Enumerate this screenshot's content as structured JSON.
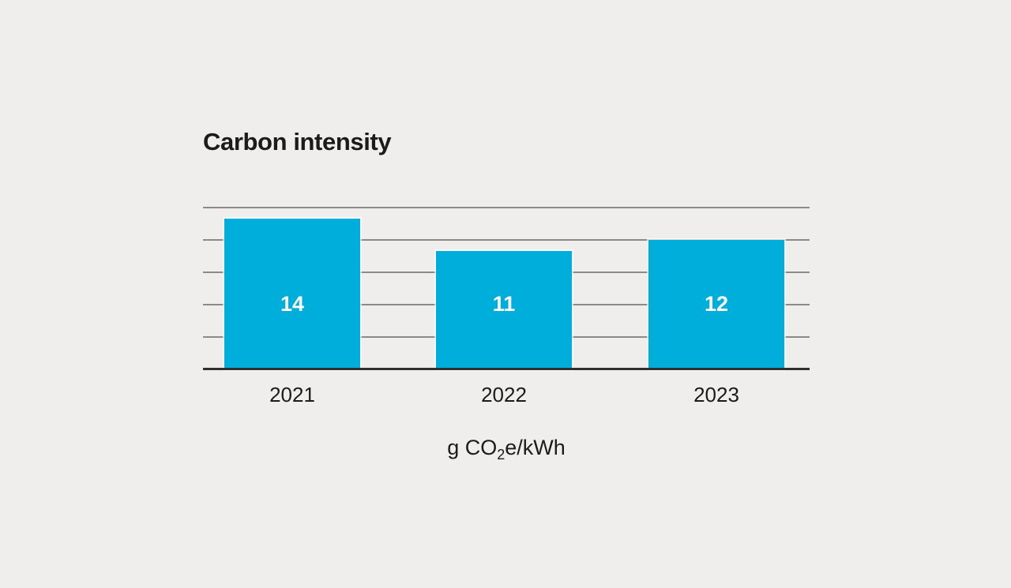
{
  "chart_data": {
    "type": "bar",
    "title": "Carbon intensity",
    "categories": [
      "2021",
      "2022",
      "2023"
    ],
    "values": [
      14,
      11,
      12
    ],
    "bar_labels": [
      "14",
      "11",
      "12"
    ],
    "xlabel": "g CO2e/kWh",
    "unit_label": {
      "prefix": "g CO",
      "subscript": "2",
      "suffix": "e/kWh"
    },
    "ylabel": "",
    "ylim": [
      0,
      15
    ],
    "gridline_values": [
      3,
      6,
      9,
      12,
      15
    ],
    "grid": "horizontal",
    "legend": "none",
    "colors": {
      "background": "#EFEEEC",
      "bar": "#00AEDC",
      "bar_label": "#FFFFFF",
      "gridline": "#8A8A8A",
      "axis": "#2F2F2F",
      "text": "#1B1B1B"
    }
  }
}
